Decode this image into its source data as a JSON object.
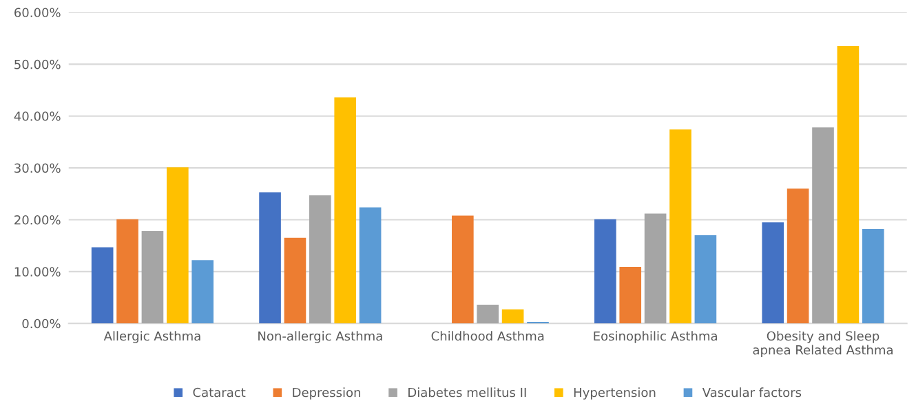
{
  "chart_data": {
    "type": "bar",
    "categories": [
      "Allergic Asthma",
      "Non-allergic Asthma",
      "Childhood Asthma",
      "Eosinophilic Asthma",
      "Obesity and Sleep\napnea Related Asthma"
    ],
    "series": [
      {
        "name": "Cataract",
        "color": "#4472c4",
        "values": [
          14.7,
          25.3,
          0,
          20.1,
          19.5
        ]
      },
      {
        "name": "Depression",
        "color": "#ed7d31",
        "values": [
          20.1,
          16.5,
          20.8,
          10.9,
          26.0
        ]
      },
      {
        "name": "Diabetes mellitus II",
        "color": "#a5a5a5",
        "values": [
          17.8,
          24.7,
          3.6,
          21.2,
          37.8
        ]
      },
      {
        "name": "Hypertension",
        "color": "#ffc000",
        "values": [
          30.1,
          43.6,
          2.7,
          37.4,
          53.5
        ]
      },
      {
        "name": "Vascular factors",
        "color": "#5b9bd5",
        "values": [
          12.2,
          22.4,
          0.3,
          17.0,
          18.2
        ]
      }
    ],
    "ylim": [
      0,
      60
    ],
    "yticks": [
      {
        "value": 0,
        "label": "0.00%"
      },
      {
        "value": 10,
        "label": "10.00%"
      },
      {
        "value": 20,
        "label": "20.00%"
      },
      {
        "value": 30,
        "label": "30.00%"
      },
      {
        "value": 40,
        "label": "40.00%"
      },
      {
        "value": 50,
        "label": "50.00%"
      },
      {
        "value": 60,
        "label": "60.00%"
      }
    ],
    "grid": "y",
    "legend": "bottom"
  }
}
